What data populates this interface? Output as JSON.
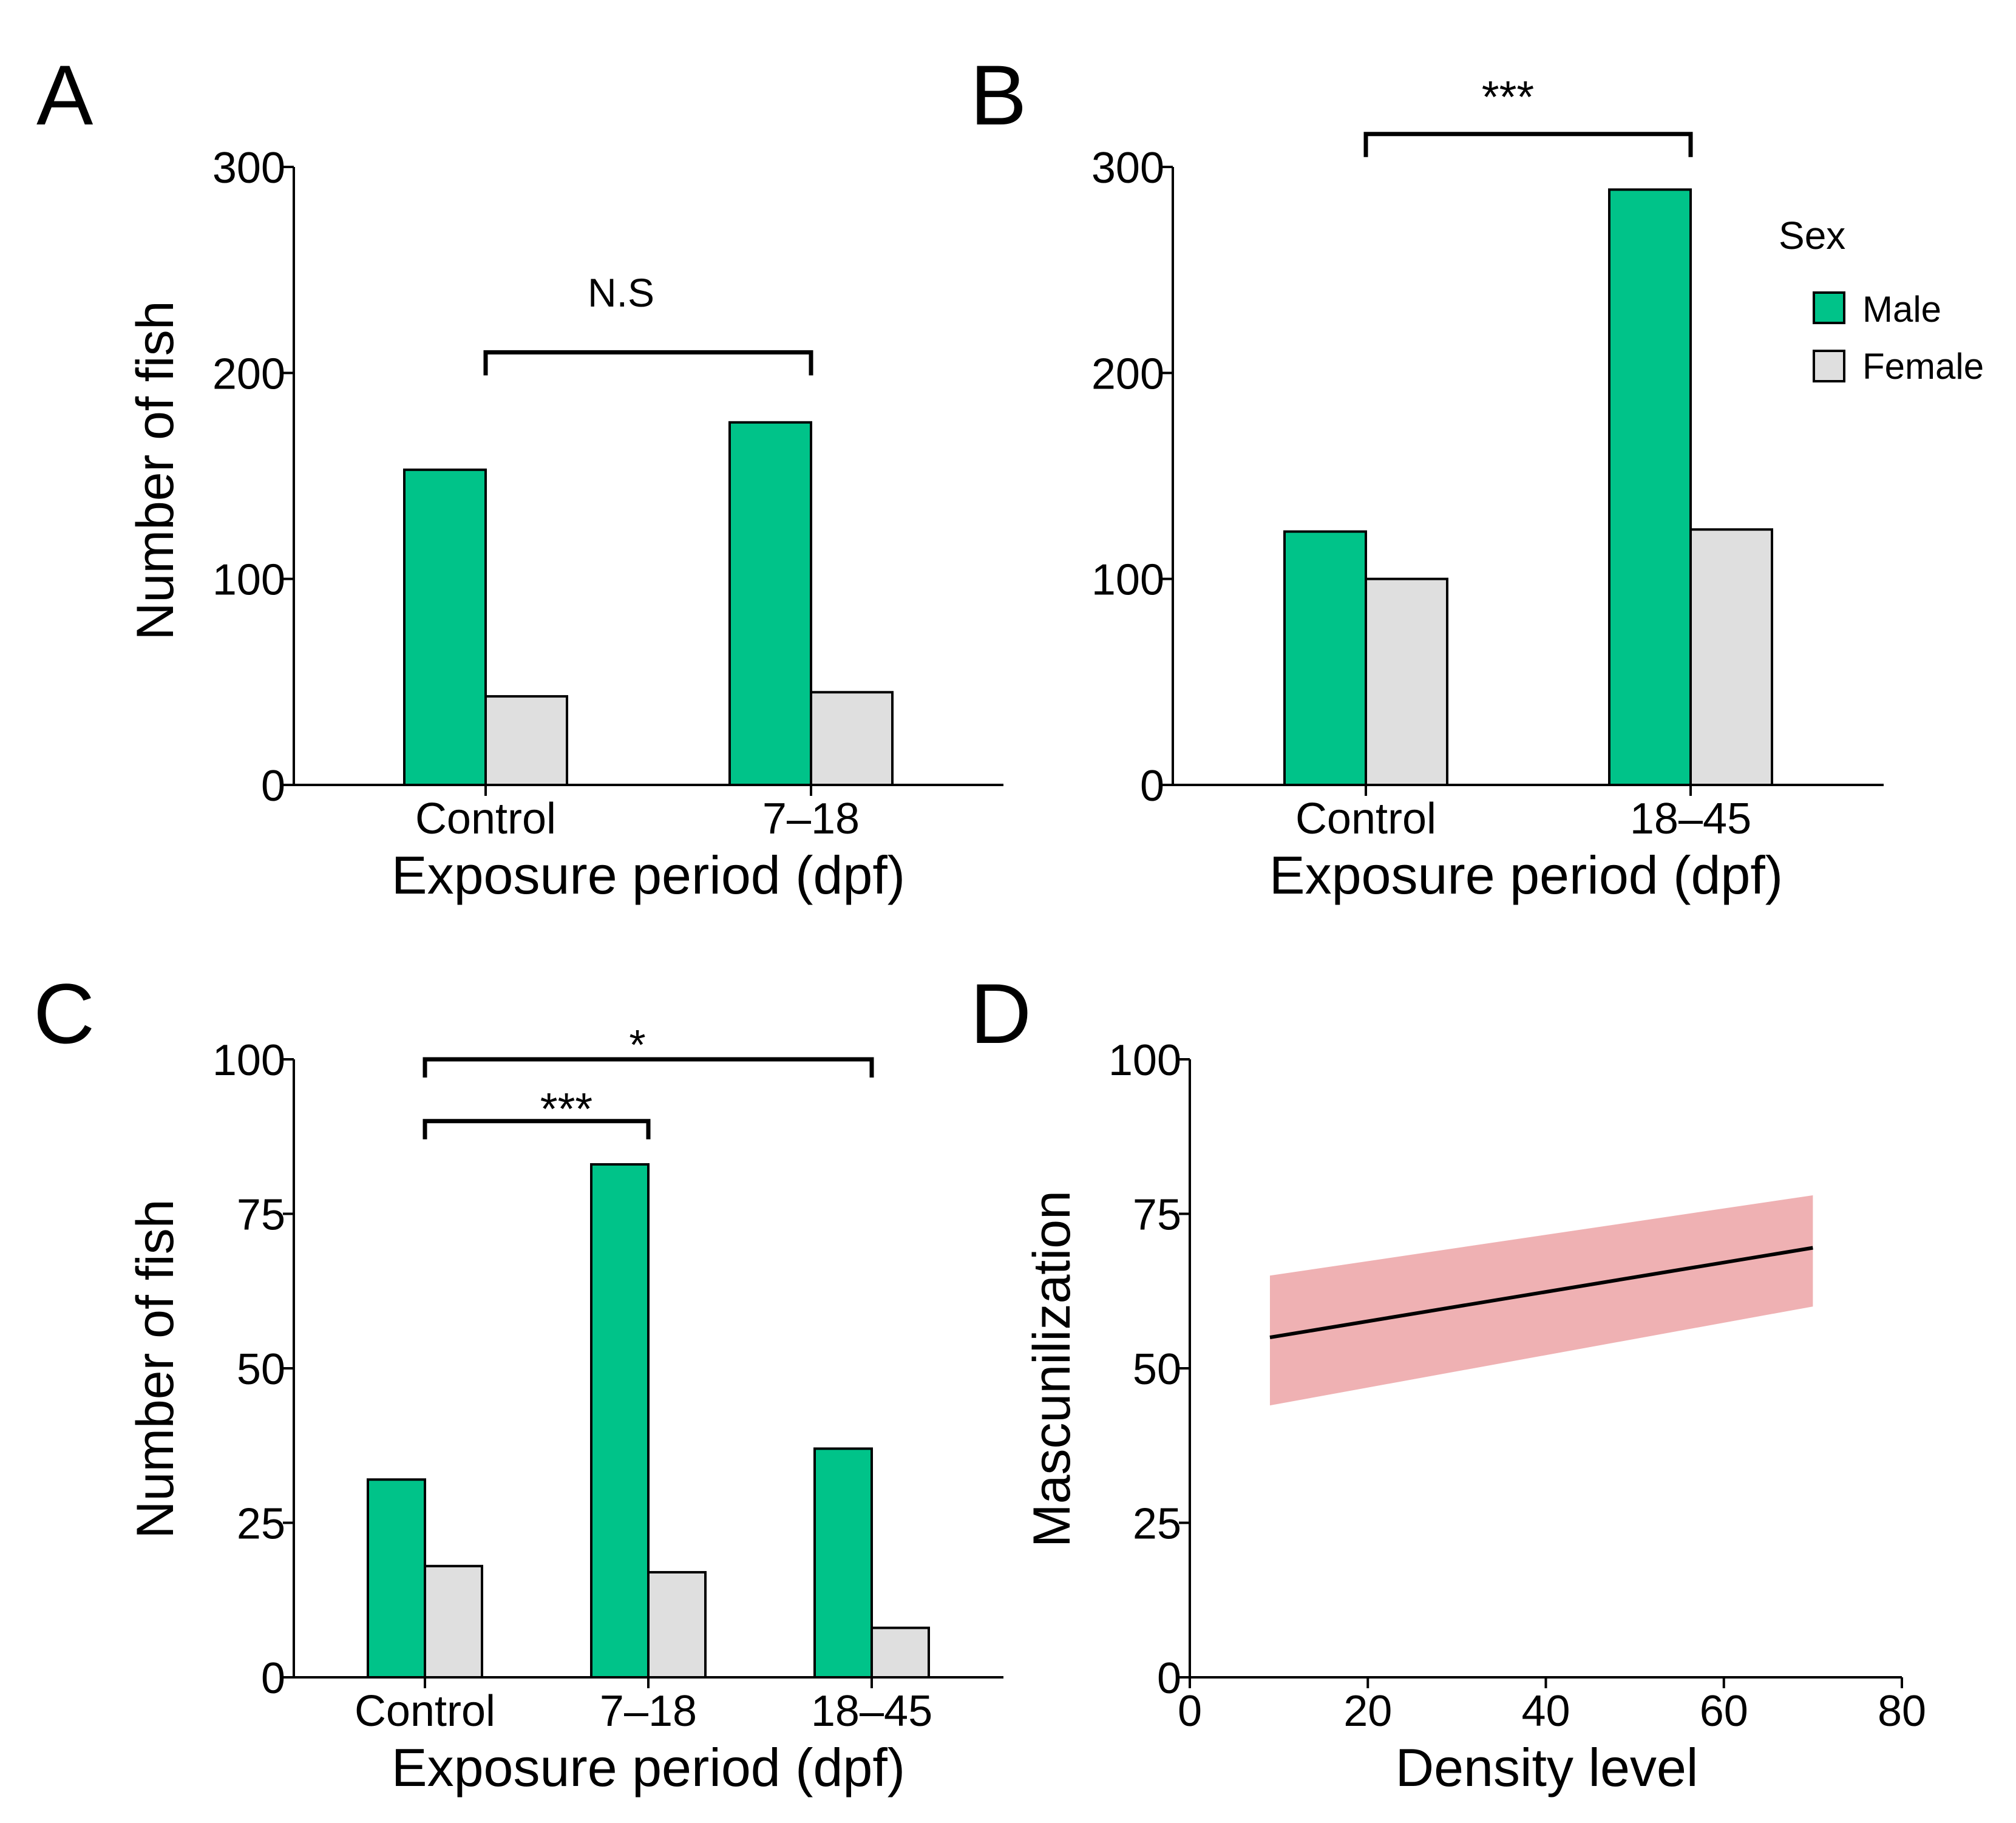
{
  "colors": {
    "male": "#00C389",
    "female": "#DFDFDF",
    "ribbon": "#EFB1B3",
    "ink": "#000000"
  },
  "legend": {
    "title": "Sex",
    "entries": [
      "Male",
      "Female"
    ]
  },
  "chart_data": [
    {
      "panel": "A",
      "type": "bar",
      "categories": [
        "Control",
        "7–18"
      ],
      "series": [
        {
          "name": "Male",
          "values": [
            153,
            176
          ]
        },
        {
          "name": "Female",
          "values": [
            43,
            45
          ]
        }
      ],
      "xlabel": "Exposure period (dpf)",
      "ylabel": "Number of fish",
      "ylim": [
        0,
        300
      ],
      "yticks": [
        0,
        100,
        200,
        300
      ],
      "ytick_labels": [
        "0",
        "100",
        "200",
        "300"
      ],
      "significance": [
        {
          "from": "Control",
          "to": "7–18",
          "label": "N.S",
          "y": 210
        }
      ]
    },
    {
      "panel": "B",
      "type": "bar",
      "categories": [
        "Control",
        "18–45"
      ],
      "series": [
        {
          "name": "Male",
          "values": [
            123,
            289
          ]
        },
        {
          "name": "Female",
          "values": [
            100,
            124
          ]
        }
      ],
      "xlabel": "Exposure period (dpf)",
      "ylabel": "",
      "ylim": [
        0,
        300
      ],
      "yticks": [
        0,
        100,
        200,
        300
      ],
      "ytick_labels": [
        "0",
        "100",
        "200",
        "300"
      ],
      "legend_position": "right",
      "significance": [
        {
          "from": "Control",
          "to": "18–45",
          "label": "***",
          "y": 316
        }
      ]
    },
    {
      "panel": "C",
      "type": "bar",
      "categories": [
        "Control",
        "7–18",
        "18–45"
      ],
      "series": [
        {
          "name": "Male",
          "values": [
            32,
            83,
            37
          ]
        },
        {
          "name": "Female",
          "values": [
            18,
            17,
            8
          ]
        }
      ],
      "xlabel": "Exposure period (dpf)",
      "ylabel": "Number of fish",
      "ylim": [
        0,
        100
      ],
      "yticks": [
        0,
        25,
        50,
        75,
        100
      ],
      "ytick_labels": [
        "0",
        "25",
        "50",
        "75",
        "100"
      ],
      "significance": [
        {
          "from": "Control",
          "to": "18–45",
          "label": "*",
          "y": 100
        },
        {
          "from": "Control",
          "to": "7–18",
          "label": "***",
          "y": 90
        }
      ]
    },
    {
      "panel": "D",
      "type": "line",
      "x": [
        9,
        70
      ],
      "y": [
        55,
        69.5
      ],
      "ci_lower": [
        44,
        60
      ],
      "ci_upper": [
        65,
        78
      ],
      "xlabel": "Density level",
      "ylabel": "Mascunilization",
      "xlim": [
        0,
        80
      ],
      "ylim": [
        0,
        100
      ],
      "xticks": [
        0,
        20,
        40,
        60,
        80
      ],
      "xtick_labels": [
        "0",
        "20",
        "40",
        "60",
        "80"
      ],
      "yticks": [
        0,
        25,
        50,
        75,
        100
      ],
      "ytick_labels": [
        "0",
        "25",
        "50",
        "75",
        "100"
      ]
    }
  ]
}
